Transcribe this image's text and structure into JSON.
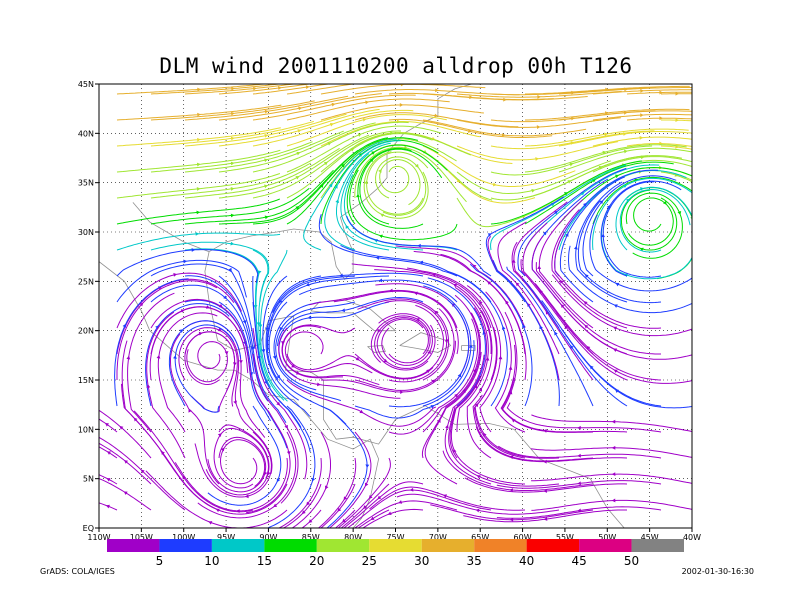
{
  "chart_data": {
    "type": "streamline",
    "title": "DLM wind 2001110200 alldrop 00h T126",
    "x_ticks": [
      "110W",
      "105W",
      "100W",
      "95W",
      "90W",
      "85W",
      "80W",
      "75W",
      "70W",
      "65W",
      "60W",
      "55W",
      "50W",
      "45W",
      "40W"
    ],
    "y_ticks": [
      "EQ",
      "5N",
      "10N",
      "15N",
      "20N",
      "25N",
      "30N",
      "35N",
      "40N",
      "45N"
    ],
    "xlim_deg_west": [
      110,
      40
    ],
    "ylim_deg_north": [
      0,
      45
    ],
    "grid": true,
    "grid_style": "dotted",
    "colorbar": {
      "thresholds": [
        "5",
        "10",
        "15",
        "20",
        "25",
        "30",
        "35",
        "40",
        "45",
        "50"
      ],
      "colors": [
        "#a000c8",
        "#1e3cff",
        "#00c8c8",
        "#00dc00",
        "#a0e632",
        "#e6dc32",
        "#e6af2d",
        "#f08228",
        "#fa0000",
        "#dc0082",
        "#828282"
      ]
    },
    "circulation_centers": [
      {
        "type": "cyclonic",
        "lon_w": 96.5,
        "lat_n": 17.5
      },
      {
        "type": "anticyclonic",
        "lon_w": 86.5,
        "lat_n": 18
      },
      {
        "type": "anticyclonic",
        "lon_w": 73.5,
        "lat_n": 19
      },
      {
        "type": "cyclonic",
        "lon_w": 93,
        "lat_n": 6
      },
      {
        "type": "cyclonic",
        "lon_w": 75,
        "lat_n": 36
      },
      {
        "type": "cyclonic",
        "lon_w": 45,
        "lat_n": 32
      }
    ]
  },
  "footer": {
    "left": "GrADS: COLA/IGES",
    "right": "2002-01-30-16:30"
  }
}
